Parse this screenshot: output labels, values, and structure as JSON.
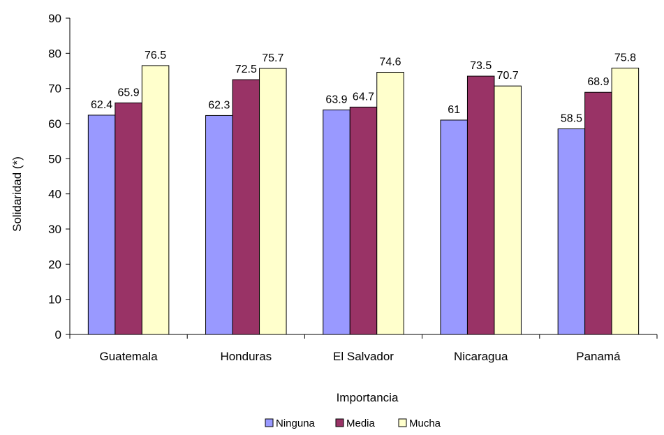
{
  "chart_data": {
    "type": "bar",
    "xlabel": "Importancia",
    "ylabel": "Solidaridad (*)",
    "ylim": [
      0,
      90
    ],
    "yticks": [
      0,
      10,
      20,
      30,
      40,
      50,
      60,
      70,
      80,
      90
    ],
    "grid": false,
    "legend_position": "bottom",
    "categories": [
      "Guatemala",
      "Honduras",
      "El Salvador",
      "Nicaragua",
      "Panamá"
    ],
    "series": [
      {
        "name": "Ninguna",
        "color": "#9999ff",
        "values": [
          62.4,
          62.3,
          63.9,
          61,
          58.5
        ],
        "labels": [
          "62.4",
          "62.3",
          "63.9",
          "61",
          "58.5"
        ]
      },
      {
        "name": "Media",
        "color": "#993366",
        "values": [
          65.9,
          72.5,
          64.7,
          73.5,
          68.9
        ],
        "labels": [
          "65.9",
          "72.5",
          "64.7",
          "73.5",
          "68.9"
        ]
      },
      {
        "name": "Mucha",
        "color": "#ffffcc",
        "values": [
          76.5,
          75.7,
          74.6,
          70.7,
          75.8
        ],
        "labels": [
          "76.5",
          "75.7",
          "74.6",
          "70.7",
          "75.8"
        ]
      }
    ]
  }
}
